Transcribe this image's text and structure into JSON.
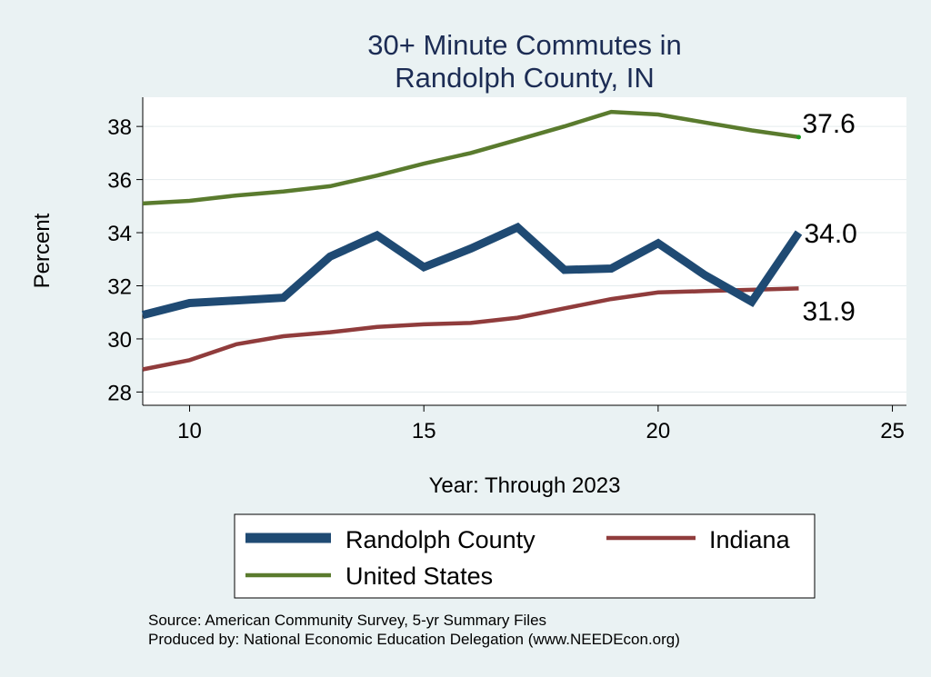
{
  "chart_data": {
    "type": "line",
    "title": [
      "30+ Minute Commutes in",
      "Randolph County, IN"
    ],
    "xlabel": "Year: Through 2023",
    "ylabel": "Percent",
    "xlim": [
      9,
      25.3
    ],
    "ylim": [
      27.5,
      39.1
    ],
    "xticks": [
      10,
      15,
      20,
      25
    ],
    "yticks": [
      28,
      30,
      32,
      34,
      36,
      38
    ],
    "grid": "horizontal",
    "x": [
      9,
      10,
      11,
      12,
      13,
      14,
      15,
      16,
      17,
      18,
      19,
      20,
      21,
      22,
      23
    ],
    "series": [
      {
        "name": "Randolph County",
        "color": "#1f4a73",
        "values": [
          30.9,
          31.35,
          31.45,
          31.55,
          33.1,
          33.9,
          32.7,
          33.4,
          34.2,
          32.6,
          32.65,
          33.6,
          32.4,
          31.4,
          34.0
        ],
        "end_label": "34.0"
      },
      {
        "name": "Indiana",
        "color": "#903c3c",
        "values": [
          28.85,
          29.2,
          29.8,
          30.1,
          30.25,
          30.45,
          30.55,
          30.6,
          30.8,
          31.15,
          31.5,
          31.75,
          31.8,
          31.85,
          31.9
        ],
        "end_label": "31.9"
      },
      {
        "name": "United States",
        "color": "#5a7b2e",
        "values": [
          35.1,
          35.2,
          35.4,
          35.55,
          35.75,
          36.15,
          36.6,
          37.0,
          37.5,
          38.0,
          38.55,
          38.45,
          38.15,
          37.85,
          37.6
        ],
        "end_label": "37.6"
      }
    ],
    "legend": {
      "placement": "bottom",
      "entries": [
        "Randolph County",
        "Indiana",
        "United States"
      ]
    },
    "source": [
      "Source: American Community Survey, 5-yr Summary Files",
      "Produced by: National Economic Education Delegation (www.NEEDEcon.org)"
    ]
  }
}
